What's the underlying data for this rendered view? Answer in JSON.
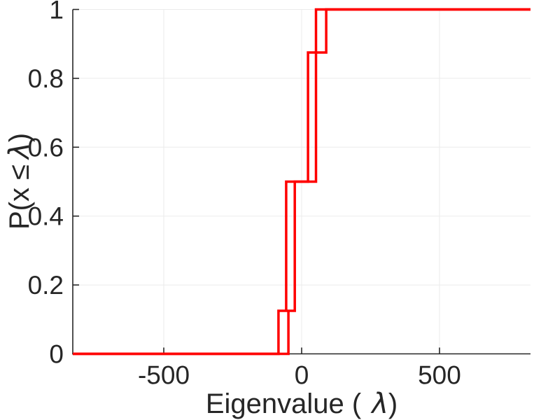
{
  "figure": {
    "background": "#ffffff",
    "axis_color": "#262626",
    "grid_color": "#ebebeb"
  },
  "chart_data": {
    "type": "line",
    "variant": "empirical-cdf-staircase",
    "title": "",
    "xlabel": "Eigenvalue ( λ)",
    "ylabel": "P(x ≤ λ)",
    "xlabel_text": "Eigenvalue (",
    "ylabel_text": "P(x ≤",
    "lambda_symbol": "λ",
    "paren_close": ")",
    "xlim": [
      -830,
      830
    ],
    "ylim": [
      0,
      1
    ],
    "grid": true,
    "legend": "none",
    "axis_color": "#262626",
    "grid_color": "#ebebeb",
    "line_color": "#ff0000",
    "line_width": 3.5,
    "xticks": [
      {
        "v": -500,
        "label": "-500"
      },
      {
        "v": 0,
        "label": "0"
      },
      {
        "v": 500,
        "label": "500"
      }
    ],
    "yticks": [
      {
        "v": 0,
        "label": "0"
      },
      {
        "v": 0.2,
        "label": "0.2"
      },
      {
        "v": 0.4,
        "label": "0.4"
      },
      {
        "v": 0.6,
        "label": "0.6"
      },
      {
        "v": 0.8,
        "label": "0.8"
      },
      {
        "v": 1,
        "label": "1"
      }
    ],
    "cdf_levels": [
      0,
      0.125,
      0.5,
      0.875,
      1
    ],
    "series": [
      {
        "name": "ecdf-curve-1",
        "start_level": 0,
        "steps": [
          {
            "x": -84,
            "level": 0.125
          },
          {
            "x": -56,
            "level": 0.5
          },
          {
            "x": 23,
            "level": 0.875
          },
          {
            "x": 52,
            "level": 1
          }
        ],
        "eigenvalues": [
          -84,
          -56,
          -56,
          -56,
          23,
          23,
          23,
          52
        ]
      },
      {
        "name": "ecdf-curve-2",
        "start_level": 0,
        "steps": [
          {
            "x": -48,
            "level": 0.125
          },
          {
            "x": -25,
            "level": 0.5
          },
          {
            "x": 52,
            "level": 0.875
          },
          {
            "x": 89,
            "level": 1
          }
        ],
        "eigenvalues": [
          -48,
          -25,
          -25,
          -25,
          52,
          52,
          52,
          89
        ]
      }
    ]
  }
}
